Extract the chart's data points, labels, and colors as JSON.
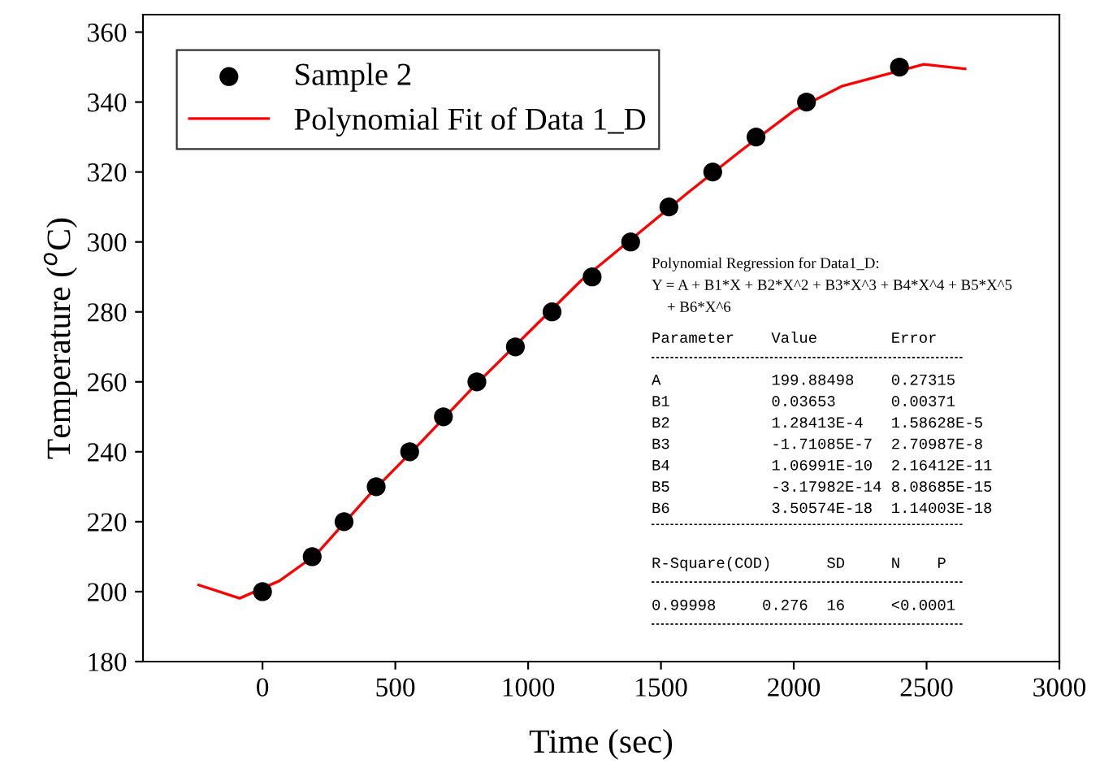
{
  "chart_data": {
    "type": "scatter",
    "xlabel": "Time (sec)",
    "ylabel": "Temperature ($^{o}$C)",
    "xlim": [
      -450,
      3000
    ],
    "xticks": [
      0,
      500,
      1000,
      1500,
      2000,
      2500,
      3000
    ],
    "ylim": [
      180,
      365
    ],
    "yticks": [
      180,
      200,
      220,
      240,
      260,
      280,
      300,
      320,
      340,
      360
    ],
    "legend": "top left",
    "grid": false,
    "series": [
      {
        "name": "Sample 2",
        "color": "#000000",
        "marker": "circle",
        "x": [
          0,
          187,
          307,
          428,
          554,
          681,
          807,
          952,
          1090,
          1241,
          1386,
          1530,
          1695,
          1858,
          2048,
          2398
        ],
        "values": [
          200,
          210,
          220,
          230,
          240,
          250,
          260,
          270,
          280,
          290,
          300,
          310,
          320,
          330,
          340,
          350
        ]
      },
      {
        "name": "Polynomial Fit of Data 1_D",
        "type": "line",
        "color": "#ff0000",
        "marker": "none",
        "line_style": "solid",
        "x": [
          -240,
          -86,
          64,
          200,
          400,
          600,
          800,
          1000,
          1200,
          1400,
          1600,
          1800,
          2000,
          2180,
          2490,
          2645
        ],
        "values": [
          201.9,
          198.1,
          203.1,
          210.5,
          227.5,
          243,
          259,
          274,
          289,
          301.5,
          314,
          326,
          337.5,
          344.5,
          350.8,
          349.5
        ]
      }
    ],
    "annotations": [
      "Polynomial Regression for Data1_D:",
      "Y = A + B1*X + B2*X^2 + B3*X^3 + B4*X^4 + B5*X^5",
      "    + B6*X^6",
      "Parameter    Value        Error",
      "A            199.88498    0.27315",
      "B1           0.03653      0.00371",
      "B2           1.28413E-4   1.58628E-5",
      "B3           -1.71085E-7  2.70987E-8",
      "B4           1.06991E-10  2.16412E-11",
      "B5           -3.17982E-14 8.08685E-15",
      "B6           3.50574E-18  1.14003E-18",
      "R-Square(COD)      SD     N    P",
      "0.99998     0.276  16     <0.0001"
    ]
  }
}
